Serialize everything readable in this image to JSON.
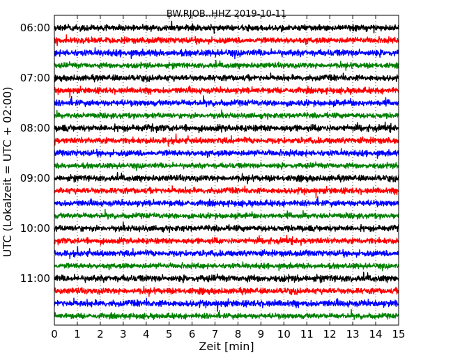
{
  "chart_data": {
    "type": "line",
    "title": "BW.RJOB..HHZ 2019-10-11",
    "xlabel": "Zeit  [min]",
    "ylabel": "UTC (Lokalzeit = UTC + 02:00)",
    "xlim": [
      0,
      15
    ],
    "x_ticks": [
      "0",
      "1",
      "2",
      "3",
      "4",
      "5",
      "6",
      "7",
      "8",
      "9",
      "10",
      "11",
      "12",
      "13",
      "14",
      "15"
    ],
    "y_ticks": [
      "06:00",
      "07:00",
      "08:00",
      "09:00",
      "10:00",
      "11:00"
    ],
    "grid": "vertical dotted",
    "trace_interval_min": 15,
    "trace_colors": [
      "#000000",
      "#ff0000",
      "#0000ff",
      "#008000"
    ],
    "traces": [
      {
        "start": "06:00",
        "amplitude": 0.2
      },
      {
        "start": "06:15",
        "amplitude": 0.2
      },
      {
        "start": "06:30",
        "amplitude": 0.22
      },
      {
        "start": "06:45",
        "amplitude": 0.18
      },
      {
        "start": "07:00",
        "amplitude": 0.2
      },
      {
        "start": "07:15",
        "amplitude": 0.2
      },
      {
        "start": "07:30",
        "amplitude": 0.2
      },
      {
        "start": "07:45",
        "amplitude": 0.18
      },
      {
        "start": "08:00",
        "amplitude": 0.22
      },
      {
        "start": "08:15",
        "amplitude": 0.2
      },
      {
        "start": "08:30",
        "amplitude": 0.2
      },
      {
        "start": "08:45",
        "amplitude": 0.18
      },
      {
        "start": "09:00",
        "amplitude": 0.2
      },
      {
        "start": "09:15",
        "amplitude": 0.2
      },
      {
        "start": "09:30",
        "amplitude": 0.2
      },
      {
        "start": "09:45",
        "amplitude": 0.18
      },
      {
        "start": "10:00",
        "amplitude": 0.2
      },
      {
        "start": "10:15",
        "amplitude": 0.2
      },
      {
        "start": "10:30",
        "amplitude": 0.2
      },
      {
        "start": "10:45",
        "amplitude": 0.18
      },
      {
        "start": "11:00",
        "amplitude": 0.22
      },
      {
        "start": "11:15",
        "amplitude": 0.2
      },
      {
        "start": "11:30",
        "amplitude": 0.22
      },
      {
        "start": "11:45",
        "amplitude": 0.18
      }
    ]
  }
}
